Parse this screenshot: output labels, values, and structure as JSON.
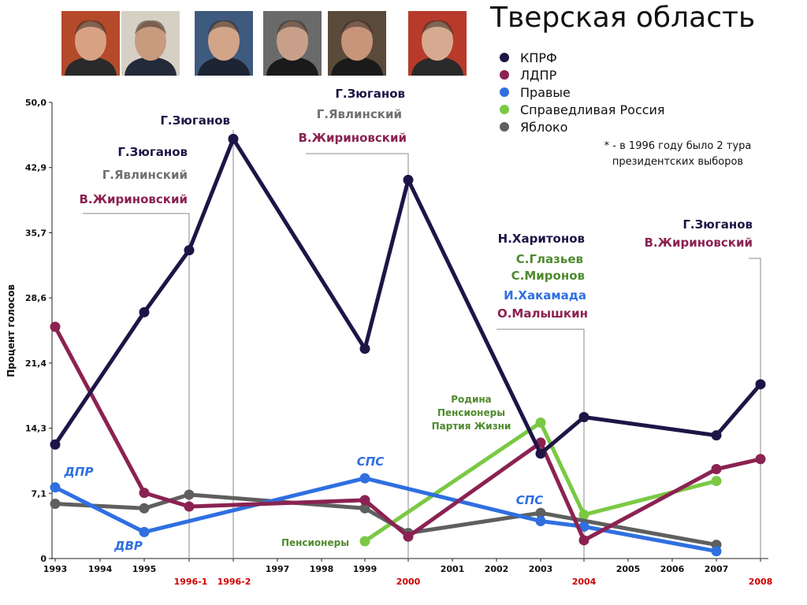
{
  "title": "Тверская область",
  "note": "* - в 1996 году было 2 тура президентских выборов",
  "colors": {
    "kprf": "#1e1546",
    "ldpr": "#8b2252",
    "right": "#2f6fe0",
    "sr": "#7ac943",
    "yabloko": "#5f5f5f",
    "green_label": "#4f8a2e",
    "grey_label": "#707070",
    "red_tick": "#cc0000"
  },
  "portraits": [
    {
      "name": "portrait-1-icon",
      "skin": "#d9a184",
      "bg": "#b44a2a",
      "suit": "#2a2a2a"
    },
    {
      "name": "portrait-2-icon",
      "skin": "#c89a7e",
      "bg": "#d6d0c4",
      "suit": "#232a3a"
    },
    {
      "name": "portrait-3-icon",
      "skin": "#d2a488",
      "bg": "#3e5a7e",
      "suit": "#1d2433"
    },
    {
      "name": "portrait-4-icon",
      "skin": "#c8a08a",
      "bg": "#6a6a6a",
      "suit": "#1a1a1a"
    },
    {
      "name": "portrait-5-icon",
      "skin": "#c8957a",
      "bg": "#5a4a3a",
      "suit": "#1a1a1a"
    },
    {
      "name": "portrait-6-icon",
      "skin": "#d5aa90",
      "bg": "#b83a2a",
      "suit": "#2a2a2a"
    }
  ],
  "chart_data": {
    "type": "line",
    "title": "Тверская область",
    "xlabel": "",
    "ylabel": "Процент голосов",
    "ylim": [
      0,
      50
    ],
    "yticks": [
      "0",
      "7,1",
      "14,3",
      "21,4",
      "28,6",
      "35,7",
      "42,9",
      "50,0"
    ],
    "categories": [
      "1993",
      "1994",
      "1995",
      "1996-1",
      "1996-2",
      "1997",
      "1998",
      "1999",
      "2000",
      "2001",
      "2002",
      "2003",
      "2004",
      "2005",
      "2006",
      "2007",
      "2008"
    ],
    "highlight_categories": [
      "1996-1",
      "1996-2",
      "2000",
      "2004",
      "2008"
    ],
    "legend_position": "top-right",
    "grid": false,
    "series": [
      {
        "key": "kprf",
        "name": "КПРФ",
        "points": [
          [
            "1993",
            12.5
          ],
          [
            "1995",
            27.0
          ],
          [
            "1996-1",
            33.8
          ],
          [
            "1996-2",
            46.0
          ],
          [
            "1999",
            23.0
          ],
          [
            "2000",
            41.5
          ],
          [
            "2003",
            11.5
          ],
          [
            "2004",
            15.5
          ],
          [
            "2007",
            13.5
          ],
          [
            "2008",
            19.1
          ]
        ]
      },
      {
        "key": "ldpr",
        "name": "ЛДПР",
        "points": [
          [
            "1993",
            25.4
          ],
          [
            "1995",
            7.2
          ],
          [
            "1996-1",
            5.7
          ],
          [
            "1999",
            6.4
          ],
          [
            "2000",
            2.4
          ],
          [
            "2003",
            12.7
          ],
          [
            "2004",
            2.0
          ],
          [
            "2007",
            9.8
          ],
          [
            "2008",
            10.9
          ]
        ]
      },
      {
        "key": "right",
        "name": "Правые",
        "points": [
          [
            "1993",
            7.8
          ],
          [
            "1995",
            2.9
          ],
          [
            "1999",
            8.8
          ],
          [
            "2003",
            4.1
          ],
          [
            "2004",
            3.5
          ],
          [
            "2007",
            0.8
          ]
        ]
      },
      {
        "key": "sr",
        "name": "Справедливая Россия",
        "points": [
          [
            "1999",
            1.9
          ],
          [
            "2003",
            14.9
          ],
          [
            "2004",
            4.8
          ],
          [
            "2007",
            8.5
          ]
        ]
      },
      {
        "key": "yabloko",
        "name": "Яблоко",
        "points": [
          [
            "1993",
            6.0
          ],
          [
            "1995",
            5.5
          ],
          [
            "1996-1",
            7.0
          ],
          [
            "1999",
            5.5
          ],
          [
            "2000",
            2.8
          ],
          [
            "2003",
            5.0
          ],
          [
            "2007",
            1.5
          ]
        ]
      }
    ],
    "annotations": [
      {
        "text": "ДПР",
        "color_key": "right",
        "italic": true,
        "anchor": "1993"
      },
      {
        "text": "ДВР",
        "color_key": "right",
        "italic": true,
        "anchor": "1995"
      },
      {
        "text": "СПС",
        "color_key": "right",
        "italic": true,
        "anchor": "1999"
      },
      {
        "text": "СПС",
        "color_key": "right",
        "italic": true,
        "anchor": "2003"
      },
      {
        "text": "Пенсионеры",
        "color_key": "green_label",
        "anchor": "1999"
      },
      {
        "text": "Родина",
        "color_key": "green_label",
        "anchor": "2003"
      },
      {
        "text": "Пенсионеры",
        "color_key": "green_label",
        "anchor": "2003"
      },
      {
        "text": "Партия Жизни",
        "color_key": "green_label",
        "anchor": "2003"
      },
      {
        "text": "Г.Зюганов",
        "color_key": "kprf",
        "anchor": "1996-1"
      },
      {
        "text": "Г.Явлинский",
        "color_key": "grey_label",
        "anchor": "1996-1"
      },
      {
        "text": "В.Жириновский",
        "color_key": "ldpr",
        "anchor": "1996-1"
      },
      {
        "text": "Г.Зюганов",
        "color_key": "kprf",
        "anchor": "1996-2"
      },
      {
        "text": "Г.Зюганов",
        "color_key": "kprf",
        "anchor": "2000"
      },
      {
        "text": "Г.Явлинский",
        "color_key": "grey_label",
        "anchor": "2000"
      },
      {
        "text": "В.Жириновский",
        "color_key": "ldpr",
        "anchor": "2000"
      },
      {
        "text": "Н.Харитонов",
        "color_key": "kprf",
        "anchor": "2004"
      },
      {
        "text": "С.Глазьев",
        "color_key": "green_label",
        "anchor": "2004"
      },
      {
        "text": "С.Миронов",
        "color_key": "green_label",
        "anchor": "2004"
      },
      {
        "text": "И.Хакамада",
        "color_key": "right",
        "anchor": "2004"
      },
      {
        "text": "О.Малышкин",
        "color_key": "ldpr",
        "anchor": "2004"
      },
      {
        "text": "Г.Зюганов",
        "color_key": "kprf",
        "anchor": "2008"
      },
      {
        "text": "В.Жириновский",
        "color_key": "ldpr",
        "anchor": "2008"
      }
    ]
  }
}
